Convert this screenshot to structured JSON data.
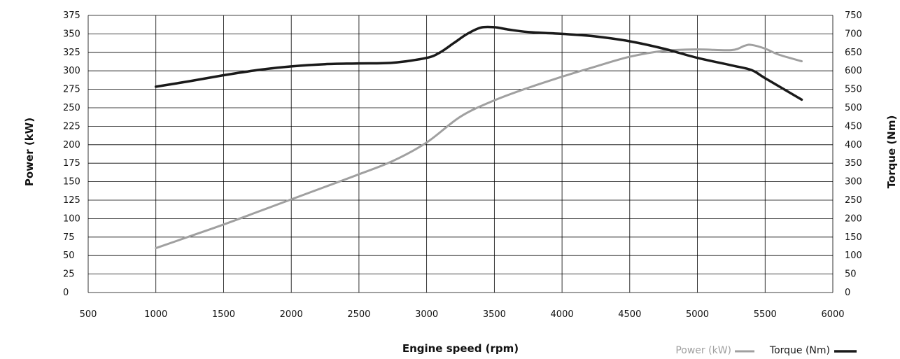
{
  "chart_data": {
    "type": "line",
    "xlabel": "Engine speed (rpm)",
    "ylabel_left": "Power (kW)",
    "ylabel_right": "Torque (Nm)",
    "x_ticks": [
      "500",
      "1000",
      "1500",
      "2000",
      "2500",
      "3000",
      "3500",
      "4000",
      "4500",
      "5000",
      "5500",
      "6000"
    ],
    "y_left_ticks": [
      "0",
      "25",
      "50",
      "75",
      "100",
      "125",
      "150",
      "175",
      "200",
      "225",
      "250",
      "275",
      "300",
      "325",
      "350",
      "375"
    ],
    "y_right_ticks": [
      "0",
      "50",
      "100",
      "150",
      "200",
      "250",
      "300",
      "350",
      "400",
      "450",
      "500",
      "550",
      "600",
      "650",
      "700",
      "750"
    ],
    "xlim": [
      500,
      6000
    ],
    "ylim_left": [
      0,
      375
    ],
    "ylim_right": [
      0,
      750
    ],
    "grid": true,
    "legend_position": "bottom-right",
    "series": [
      {
        "name": "Power (kW)",
        "axis": "left",
        "color": "#a0a0a0",
        "x": [
          1000,
          1250,
          1500,
          1750,
          2000,
          2250,
          2500,
          2750,
          3000,
          3250,
          3500,
          3750,
          4000,
          4250,
          4500,
          4750,
          5000,
          5250,
          5350,
          5400,
          5500,
          5600,
          5770
        ],
        "y": [
          60,
          76,
          92,
          109,
          126,
          143,
          160,
          178,
          203,
          238,
          260,
          277,
          292,
          306,
          319,
          327,
          329,
          328,
          334,
          335,
          330,
          322,
          313
        ]
      },
      {
        "name": "Torque (Nm)",
        "axis": "right",
        "color": "#1a1a1a",
        "x": [
          1000,
          1250,
          1500,
          1750,
          2000,
          2250,
          2500,
          2750,
          3000,
          3100,
          3200,
          3300,
          3400,
          3500,
          3600,
          3750,
          4000,
          4250,
          4500,
          4750,
          5000,
          5250,
          5400,
          5500,
          5770
        ],
        "y": [
          557,
          572,
          588,
          602,
          612,
          618,
          620,
          622,
          635,
          650,
          675,
          700,
          717,
          718,
          712,
          705,
          700,
          693,
          680,
          660,
          635,
          615,
          602,
          580,
          522
        ]
      }
    ]
  }
}
